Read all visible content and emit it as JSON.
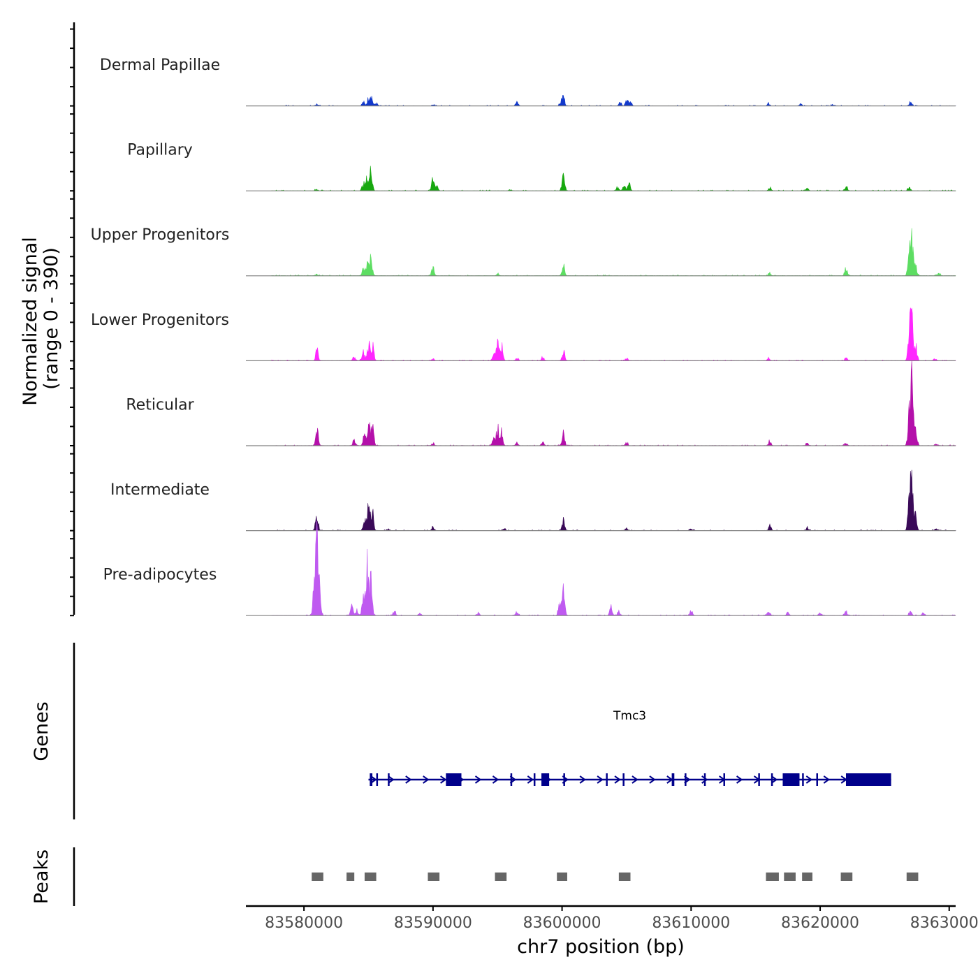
{
  "chart_data": {
    "type": "area",
    "title": "",
    "chromosome": "chr7",
    "xlabel": "chr7 position (bp)",
    "ylabel_line1": "Normalized signal",
    "ylabel_line2": "(range 0 - 390)",
    "ylim": [
      0,
      390
    ],
    "xlim": [
      83575500,
      83630500
    ],
    "x_ticks": [
      83580000,
      83590000,
      83600000,
      83610000,
      83620000,
      83630000
    ],
    "x_tick_labels": [
      "83580000",
      "83590000",
      "83600000",
      "83610000",
      "83620000",
      "83630000"
    ],
    "signal_extent": [
      83577500,
      83630500
    ],
    "tracks": [
      {
        "name": "Dermal Papillae",
        "color": "#1239cc",
        "peaks": [
          [
            83585200,
            60
          ],
          [
            83585000,
            40
          ],
          [
            83584600,
            20
          ],
          [
            83585600,
            15
          ],
          [
            83600100,
            55
          ],
          [
            83599900,
            15
          ],
          [
            83604500,
            25
          ],
          [
            83605000,
            35
          ],
          [
            83605300,
            22
          ],
          [
            83581000,
            10
          ],
          [
            83596500,
            20
          ],
          [
            83616000,
            12
          ],
          [
            83627000,
            18
          ],
          [
            83621000,
            8
          ],
          [
            83618500,
            8
          ],
          [
            83590000,
            6
          ]
        ]
      },
      {
        "name": "Papillary",
        "color": "#17a80f",
        "peaks": [
          [
            83585200,
            125
          ],
          [
            83584900,
            70
          ],
          [
            83584600,
            40
          ],
          [
            83590000,
            70
          ],
          [
            83590300,
            30
          ],
          [
            83600100,
            80
          ],
          [
            83604300,
            20
          ],
          [
            83604800,
            30
          ],
          [
            83605200,
            35
          ],
          [
            83616100,
            15
          ],
          [
            83619000,
            12
          ],
          [
            83622000,
            25
          ],
          [
            83626900,
            18
          ],
          [
            83581000,
            10
          ],
          [
            83596000,
            6
          ]
        ]
      },
      {
        "name": "Upper Progenitors",
        "color": "#5ddd62",
        "peaks": [
          [
            83585200,
            110
          ],
          [
            83584900,
            85
          ],
          [
            83584600,
            40
          ],
          [
            83590000,
            40
          ],
          [
            83600100,
            55
          ],
          [
            83595000,
            10
          ],
          [
            83616100,
            12
          ],
          [
            83622000,
            45
          ],
          [
            83627100,
            220
          ],
          [
            83626900,
            110
          ],
          [
            83627400,
            55
          ],
          [
            83629200,
            12
          ],
          [
            83581000,
            8
          ]
        ]
      },
      {
        "name": "Lower Progenitors",
        "color": "#ff26ff",
        "peaks": [
          [
            83581000,
            65
          ],
          [
            83583900,
            25
          ],
          [
            83585000,
            100
          ],
          [
            83585300,
            95
          ],
          [
            83584600,
            60
          ],
          [
            83595000,
            100
          ],
          [
            83595300,
            85
          ],
          [
            83594700,
            40
          ],
          [
            83600100,
            55
          ],
          [
            83598500,
            20
          ],
          [
            83605000,
            15
          ],
          [
            83616000,
            12
          ],
          [
            83622000,
            15
          ],
          [
            83627100,
            265
          ],
          [
            83626900,
            140
          ],
          [
            83627400,
            90
          ],
          [
            83628900,
            12
          ],
          [
            83590000,
            10
          ],
          [
            83596500,
            20
          ]
        ]
      },
      {
        "name": "Reticular",
        "color": "#b410aa",
        "peaks": [
          [
            83581000,
            95
          ],
          [
            83583900,
            30
          ],
          [
            83585000,
            140
          ],
          [
            83585300,
            115
          ],
          [
            83584700,
            70
          ],
          [
            83595000,
            100
          ],
          [
            83595300,
            80
          ],
          [
            83594700,
            45
          ],
          [
            83600100,
            65
          ],
          [
            83598500,
            20
          ],
          [
            83605000,
            18
          ],
          [
            83616100,
            25
          ],
          [
            83619000,
            12
          ],
          [
            83622000,
            15
          ],
          [
            83627100,
            340
          ],
          [
            83626900,
            180
          ],
          [
            83627400,
            110
          ],
          [
            83629000,
            12
          ],
          [
            83590000,
            12
          ],
          [
            83596500,
            18
          ]
        ]
      },
      {
        "name": "Intermediate",
        "color": "#3a0a58",
        "peaks": [
          [
            83581000,
            85
          ],
          [
            83585000,
            130
          ],
          [
            83585300,
            115
          ],
          [
            83584700,
            60
          ],
          [
            83590000,
            18
          ],
          [
            83595500,
            15
          ],
          [
            83600100,
            60
          ],
          [
            83605000,
            15
          ],
          [
            83610000,
            12
          ],
          [
            83616100,
            25
          ],
          [
            83619000,
            18
          ],
          [
            83627100,
            300
          ],
          [
            83626900,
            160
          ],
          [
            83627400,
            90
          ],
          [
            83629000,
            10
          ],
          [
            83586500,
            10
          ]
        ]
      },
      {
        "name": "Pre-adipocytes",
        "color": "#bf5af0",
        "peaks": [
          [
            83581000,
            385
          ],
          [
            83580800,
            160
          ],
          [
            83581200,
            140
          ],
          [
            83583700,
            55
          ],
          [
            83584100,
            35
          ],
          [
            83584900,
            280
          ],
          [
            83585200,
            200
          ],
          [
            83584600,
            90
          ],
          [
            83587000,
            25
          ],
          [
            83589000,
            15
          ],
          [
            83596500,
            20
          ],
          [
            83600100,
            165
          ],
          [
            83599800,
            60
          ],
          [
            83603800,
            45
          ],
          [
            83604400,
            25
          ],
          [
            83610000,
            30
          ],
          [
            83616000,
            30
          ],
          [
            83617500,
            18
          ],
          [
            83620000,
            20
          ],
          [
            83622000,
            25
          ],
          [
            83627000,
            25
          ],
          [
            83628000,
            18
          ],
          [
            83593500,
            15
          ]
        ]
      }
    ],
    "genes": [
      {
        "name": "Tmc3",
        "strand": "+",
        "start": 83585000,
        "end": 83625500,
        "exons": [
          [
            83585100,
            83585300
          ],
          [
            83585600,
            83585700
          ],
          [
            83586500,
            83586600
          ],
          [
            83591000,
            83592200
          ],
          [
            83596000,
            83596100
          ],
          [
            83597800,
            83597900
          ],
          [
            83598400,
            83599000
          ],
          [
            83600100,
            83600200
          ],
          [
            83603400,
            83603500
          ],
          [
            83604700,
            83604800
          ],
          [
            83608500,
            83608700
          ],
          [
            83609500,
            83609600
          ],
          [
            83611000,
            83611100
          ],
          [
            83612500,
            83612600
          ],
          [
            83615200,
            83615300
          ],
          [
            83616200,
            83616300
          ],
          [
            83617100,
            83618400
          ],
          [
            83618600,
            83618700
          ],
          [
            83619700,
            83619800
          ],
          [
            83622000,
            83625500
          ]
        ]
      }
    ],
    "peak_regions": [
      [
        83580600,
        83581500
      ],
      [
        83583300,
        83583900
      ],
      [
        83584700,
        83585600
      ],
      [
        83589600,
        83590500
      ],
      [
        83594800,
        83595700
      ],
      [
        83599600,
        83600400
      ],
      [
        83604400,
        83605300
      ],
      [
        83615800,
        83616800
      ],
      [
        83617200,
        83618100
      ],
      [
        83618600,
        83619400
      ],
      [
        83621600,
        83622500
      ],
      [
        83626700,
        83627600
      ]
    ],
    "panel_labels": {
      "genes": "Genes",
      "peaks": "Peaks"
    },
    "colors": {
      "axis": "#000000",
      "baseline": "#808080",
      "gene": "#00008b",
      "peak": "#666666"
    }
  }
}
